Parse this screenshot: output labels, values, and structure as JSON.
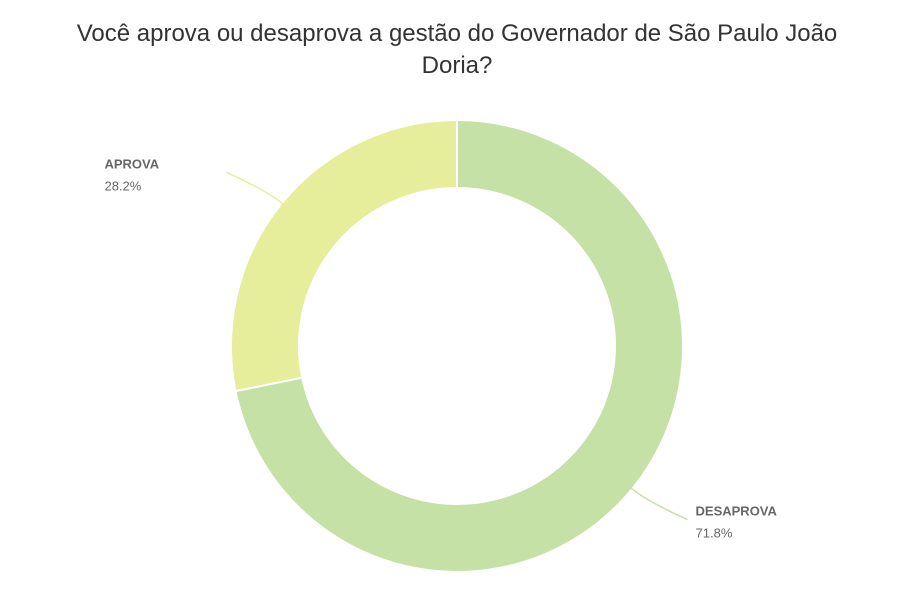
{
  "chart_data": {
    "type": "donut",
    "title": "Você aprova ou desaprova a gestão do Governador de São Paulo João Doria?",
    "categories": [
      "DESAPROVA",
      "APROVA"
    ],
    "values": [
      71.8,
      28.2
    ],
    "value_labels": [
      "71.8%",
      "28.2%"
    ],
    "colors": [
      "#c5e1a5",
      "#e6ee9c"
    ]
  }
}
